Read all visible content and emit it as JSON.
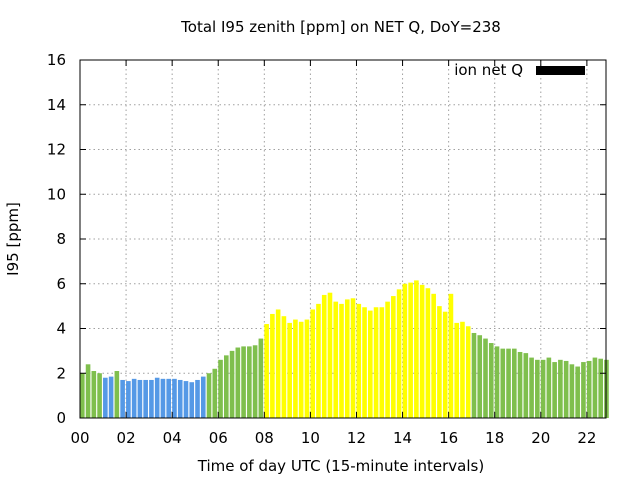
{
  "chart_data": {
    "type": "bar",
    "title": "Total I95 zenith [ppm] on NET Q, DoY=238",
    "xlabel": "Time of day UTC (15-minute intervals)",
    "ylabel": "I95 [ppm]",
    "ylim": [
      0,
      16
    ],
    "xlim": [
      0,
      22.83
    ],
    "grid": true,
    "legend": {
      "position": "top-right",
      "label": "ion net Q",
      "swatch_color": "#000000"
    },
    "x_ticks": [
      {
        "value": 0,
        "label": "00"
      },
      {
        "value": 2,
        "label": "02"
      },
      {
        "value": 4,
        "label": "04"
      },
      {
        "value": 6,
        "label": "06"
      },
      {
        "value": 8,
        "label": "08"
      },
      {
        "value": 10,
        "label": "10"
      },
      {
        "value": 12,
        "label": "12"
      },
      {
        "value": 14,
        "label": "14"
      },
      {
        "value": 16,
        "label": "16"
      },
      {
        "value": 18,
        "label": "18"
      },
      {
        "value": 20,
        "label": "20"
      },
      {
        "value": 22,
        "label": "22"
      }
    ],
    "y_ticks": [
      {
        "value": 0,
        "label": "0"
      },
      {
        "value": 2,
        "label": "2"
      },
      {
        "value": 4,
        "label": "4"
      },
      {
        "value": 6,
        "label": "6"
      },
      {
        "value": 8,
        "label": "8"
      },
      {
        "value": 10,
        "label": "10"
      },
      {
        "value": 12,
        "label": "12"
      },
      {
        "value": 14,
        "label": "14"
      },
      {
        "value": 16,
        "label": "16"
      }
    ],
    "interval_hours": 0.25,
    "colors": {
      "green": "#7fbf4d",
      "blue": "#5599e6",
      "yellow": "#ffff00"
    },
    "values": [
      2.0,
      2.4,
      2.1,
      2.0,
      1.8,
      1.85,
      2.1,
      1.7,
      1.65,
      1.75,
      1.7,
      1.7,
      1.7,
      1.8,
      1.75,
      1.75,
      1.75,
      1.7,
      1.65,
      1.6,
      1.7,
      1.85,
      2.0,
      2.2,
      2.6,
      2.8,
      3.0,
      3.15,
      3.2,
      3.2,
      3.25,
      3.55,
      4.2,
      4.65,
      4.85,
      4.55,
      4.25,
      4.4,
      4.3,
      4.4,
      4.85,
      5.1,
      5.5,
      5.6,
      5.2,
      5.1,
      5.3,
      5.35,
      5.1,
      4.95,
      4.8,
      4.95,
      4.95,
      5.2,
      5.45,
      5.75,
      6.0,
      6.05,
      6.15,
      5.95,
      5.8,
      5.55,
      5.0,
      4.75,
      5.55,
      4.25,
      4.3,
      4.1,
      3.8,
      3.7,
      3.55,
      3.35,
      3.2,
      3.1,
      3.1,
      3.1,
      2.95,
      2.9,
      2.7,
      2.6,
      2.6,
      2.7,
      2.5,
      2.6,
      2.55,
      2.4,
      2.3,
      2.5,
      2.55,
      2.7,
      2.65,
      2.6
    ],
    "bar_colors": [
      "green",
      "green",
      "green",
      "green",
      "blue",
      "blue",
      "green",
      "blue",
      "blue",
      "blue",
      "blue",
      "blue",
      "blue",
      "blue",
      "blue",
      "blue",
      "blue",
      "blue",
      "blue",
      "blue",
      "blue",
      "blue",
      "green",
      "green",
      "green",
      "green",
      "green",
      "green",
      "green",
      "green",
      "green",
      "green",
      "yellow",
      "yellow",
      "yellow",
      "yellow",
      "yellow",
      "yellow",
      "yellow",
      "yellow",
      "yellow",
      "yellow",
      "yellow",
      "yellow",
      "yellow",
      "yellow",
      "yellow",
      "yellow",
      "yellow",
      "yellow",
      "yellow",
      "yellow",
      "yellow",
      "yellow",
      "yellow",
      "yellow",
      "yellow",
      "yellow",
      "yellow",
      "yellow",
      "yellow",
      "yellow",
      "yellow",
      "yellow",
      "yellow",
      "yellow",
      "yellow",
      "yellow",
      "green",
      "green",
      "green",
      "green",
      "green",
      "green",
      "green",
      "green",
      "green",
      "green",
      "green",
      "green",
      "green",
      "green",
      "green",
      "green",
      "green",
      "green",
      "green",
      "green",
      "green",
      "green",
      "green",
      "green"
    ]
  }
}
